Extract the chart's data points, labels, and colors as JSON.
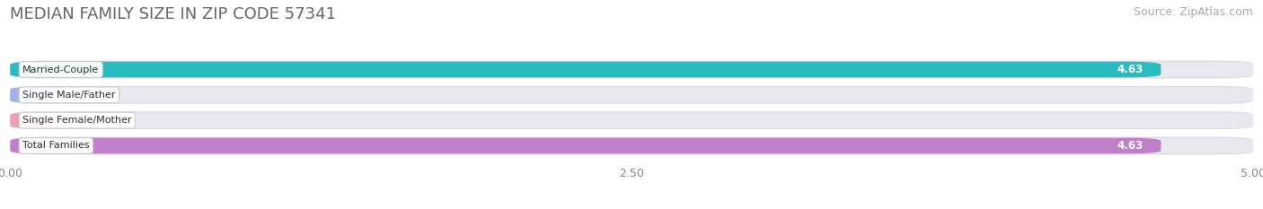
{
  "title": "MEDIAN FAMILY SIZE IN ZIP CODE 57341",
  "source": "Source: ZipAtlas.com",
  "categories": [
    "Married-Couple",
    "Single Male/Father",
    "Single Female/Mother",
    "Total Families"
  ],
  "values": [
    4.63,
    0.0,
    0.0,
    4.63
  ],
  "bar_colors": [
    "#29bcc1",
    "#9fb4e8",
    "#f0a0b5",
    "#c080c8"
  ],
  "xlim": [
    0,
    5.0
  ],
  "xticks": [
    0.0,
    2.5,
    5.0
  ],
  "xtick_labels": [
    "0.00",
    "2.50",
    "5.00"
  ],
  "background_color": "#ffffff",
  "bar_bg_color": "#e8e8ee",
  "bar_outer_color": "#d8d8e0",
  "title_fontsize": 13,
  "source_fontsize": 9,
  "bar_height": 0.62,
  "bar_gap": 0.38,
  "figsize": [
    14.06,
    2.33
  ]
}
